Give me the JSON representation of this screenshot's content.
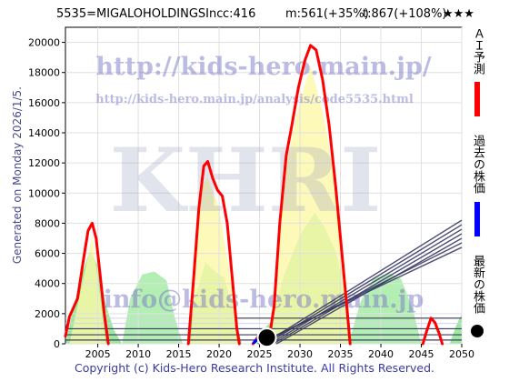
{
  "header": {
    "ticker_name": "5535=MIGALOHOLDINGSInc",
    "current": "c:416",
    "mid": "m:561(+35%)",
    "target": "t:867(+108%)",
    "stars": "★★★"
  },
  "left_caption": "Generated on Monday 2026/1/5.",
  "footer": "Copyright (c) Kids-Hero Research Institute. All Rights Reserved.",
  "watermarks": {
    "url": "http://kids-hero.main.jp/",
    "analysis_url": "http://kids-hero.main.jp/analysis/code5535.html",
    "logo": "KHRI",
    "email": "info@kids-hero.main.jp"
  },
  "legend": [
    {
      "label": "ＡＩ予測",
      "color": "#ff0000",
      "marker": "bar"
    },
    {
      "label": "過去の株価",
      "color": "#0000ff",
      "marker": "bar"
    },
    {
      "label": "最新の株価",
      "color": "#000000",
      "marker": "dot"
    }
  ],
  "chart_data": {
    "type": "line",
    "xlim": [
      2001,
      2050
    ],
    "ylim": [
      0,
      21000
    ],
    "x_ticks": [
      2005,
      2010,
      2015,
      2020,
      2025,
      2030,
      2035,
      2040,
      2045,
      2050
    ],
    "y_ticks": [
      0,
      2000,
      4000,
      6000,
      8000,
      10000,
      12000,
      14000,
      16000,
      18000,
      20000
    ],
    "grid": true,
    "latest_price": {
      "x": 2025.9,
      "y": 416
    },
    "series": [
      {
        "name": "ＡＩ予測",
        "color": "#ff0000",
        "segments": [
          [
            [
              2001,
              500
            ],
            [
              2001.5,
              1800
            ],
            [
              2002.5,
              3000
            ],
            [
              2003.2,
              5500
            ],
            [
              2003.8,
              7500
            ],
            [
              2004.3,
              8000
            ],
            [
              2004.8,
              7000
            ],
            [
              2005.3,
              4500
            ],
            [
              2005.8,
              2000
            ],
            [
              2006.3,
              0
            ]
          ],
          [
            [
              2016.2,
              0
            ],
            [
              2016.8,
              4000
            ],
            [
              2017.5,
              9000
            ],
            [
              2018.1,
              11800
            ],
            [
              2018.6,
              12100
            ],
            [
              2019.2,
              11000
            ],
            [
              2019.8,
              10200
            ],
            [
              2020.4,
              9800
            ],
            [
              2021,
              8000
            ],
            [
              2021.6,
              4500
            ],
            [
              2022.2,
              1000
            ],
            [
              2022.5,
              0
            ]
          ],
          [
            [
              2024.2,
              0
            ],
            [
              2024.6,
              300
            ],
            [
              2025.1,
              700
            ],
            [
              2025.8,
              500
            ],
            [
              2026.2,
              400
            ],
            [
              2026.8,
              2500
            ],
            [
              2027.5,
              8000
            ],
            [
              2028.3,
              12500
            ],
            [
              2029,
              14500
            ],
            [
              2029.8,
              17000
            ],
            [
              2030.6,
              18800
            ],
            [
              2031.3,
              19800
            ],
            [
              2032,
              19500
            ],
            [
              2032.8,
              17500
            ],
            [
              2033.6,
              14500
            ],
            [
              2034.4,
              10500
            ],
            [
              2035.1,
              6500
            ],
            [
              2035.7,
              3000
            ],
            [
              2036.2,
              0
            ]
          ],
          [
            [
              2045.2,
              0
            ],
            [
              2045.7,
              900
            ],
            [
              2046.2,
              1700
            ],
            [
              2046.7,
              1400
            ],
            [
              2047.2,
              700
            ],
            [
              2047.6,
              0
            ]
          ]
        ]
      },
      {
        "name": "過去の株価",
        "color": "#0000ff",
        "segments": [
          [
            [
              2024.3,
              80
            ],
            [
              2024.8,
              350
            ],
            [
              2025.3,
              700
            ],
            [
              2025.7,
              550
            ],
            [
              2025.9,
              416
            ]
          ]
        ]
      }
    ]
  }
}
